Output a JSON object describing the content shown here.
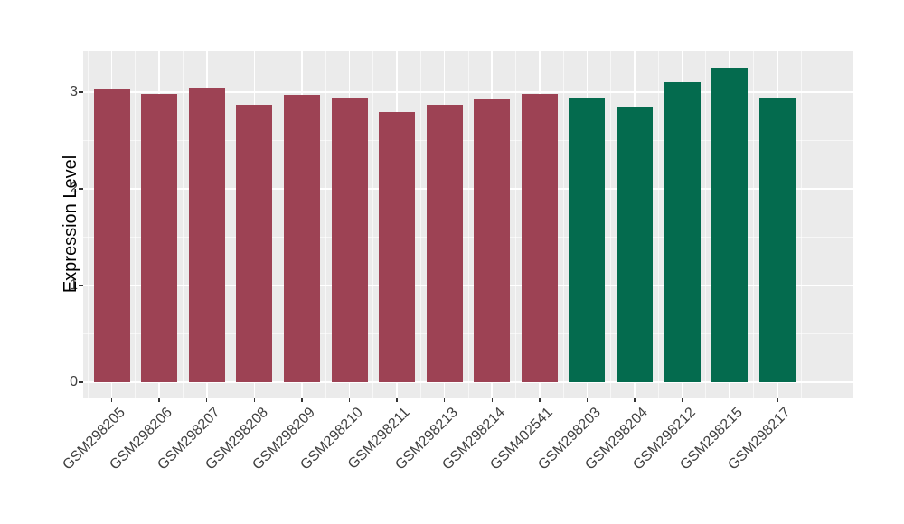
{
  "chart_data": {
    "type": "bar",
    "title": "",
    "xlabel": "",
    "ylabel": "Expression Level",
    "categories": [
      "GSM298205",
      "GSM298206",
      "GSM298207",
      "GSM298208",
      "GSM298209",
      "GSM298210",
      "GSM298211",
      "GSM298213",
      "GSM298214",
      "GSM402541",
      "GSM298203",
      "GSM298204",
      "GSM298212",
      "GSM298215",
      "GSM298217"
    ],
    "values": [
      3.03,
      2.98,
      3.05,
      2.87,
      2.97,
      2.93,
      2.79,
      2.87,
      2.92,
      2.98,
      2.94,
      2.85,
      3.1,
      3.25,
      2.94
    ],
    "bar_groups": [
      "maroon",
      "maroon",
      "maroon",
      "maroon",
      "maroon",
      "maroon",
      "maroon",
      "maroon",
      "maroon",
      "maroon",
      "green",
      "green",
      "green",
      "green",
      "green"
    ],
    "group_colors": {
      "maroon": "#9D4254",
      "green": "#046B4E"
    },
    "y_ticks": [
      0,
      1,
      2,
      3
    ],
    "y_minor_ticks": [
      0.5,
      1.5,
      2.5
    ],
    "ylim": [
      -0.16,
      3.42
    ],
    "x_tick_angle_deg": -45,
    "legend": "none",
    "grid": "on",
    "panel_background": "#EBEBEB",
    "gridline_color": "#FFFFFF",
    "axis_text_color": "#404040",
    "axis_title_color": "#000000",
    "tick_mark_color": "#333333"
  }
}
